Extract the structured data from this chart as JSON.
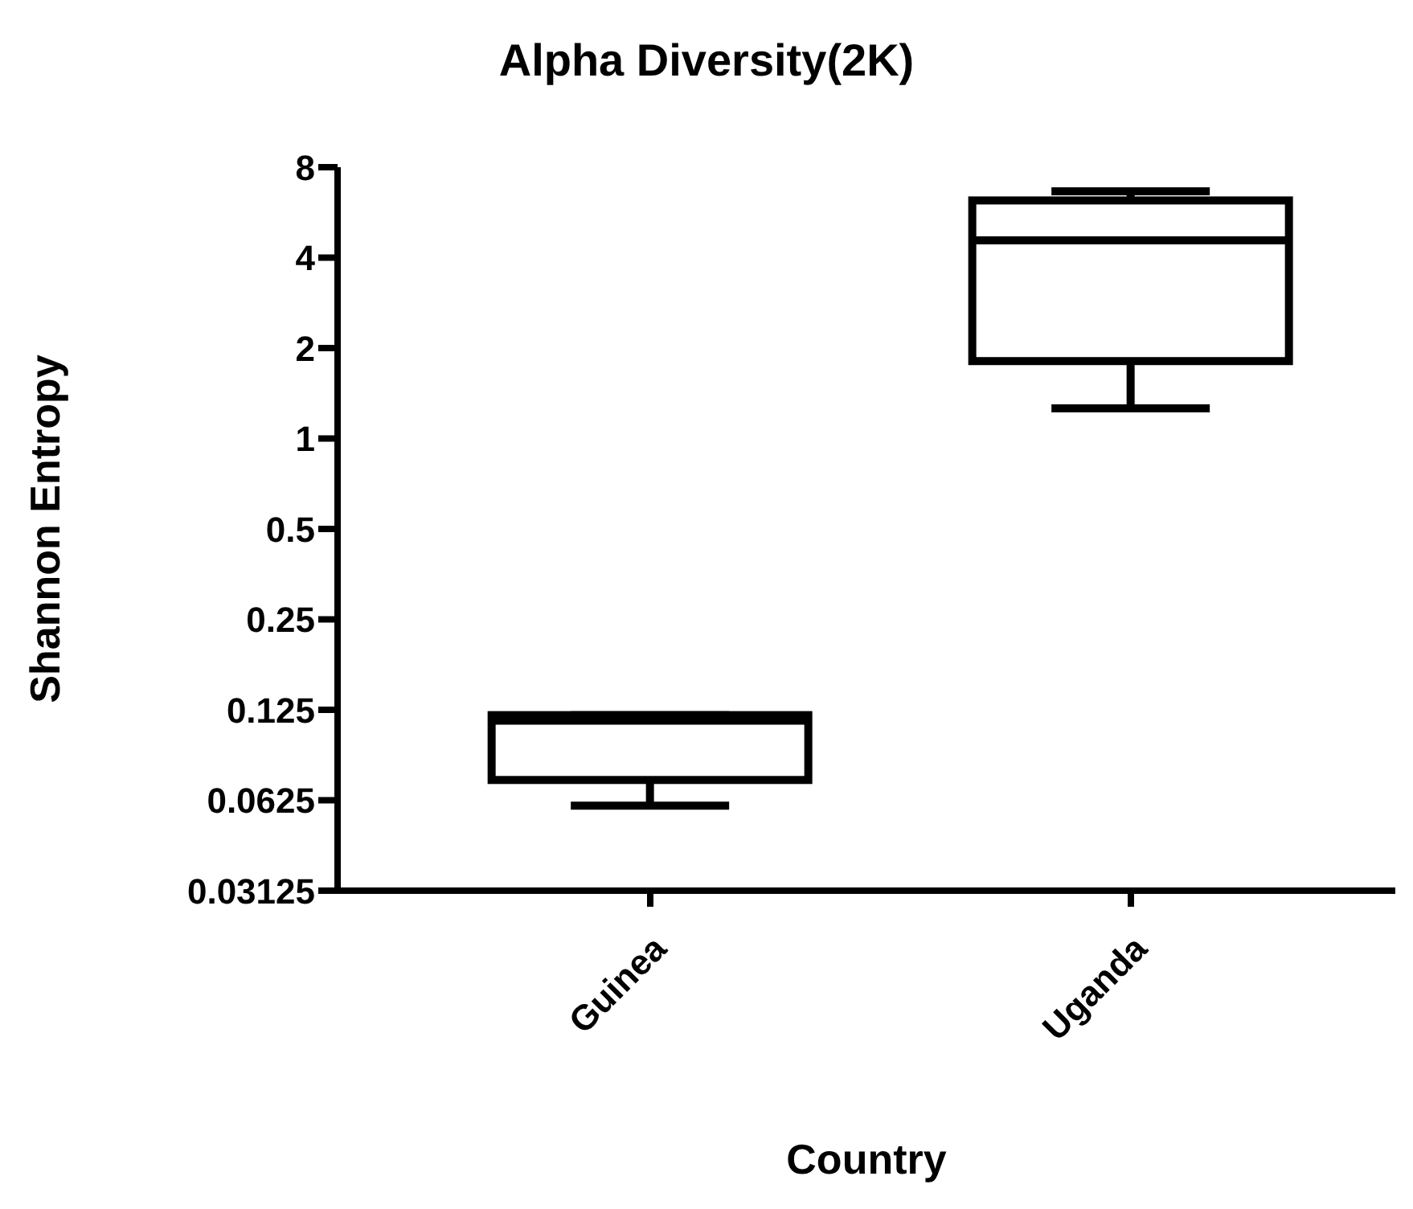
{
  "chart_data": {
    "type": "box",
    "title": "Alpha Diversity(2K)",
    "xlabel": "Country",
    "ylabel": "Shannon Entropy",
    "categories": [
      "Guinea",
      "Uganda"
    ],
    "boxes": [
      {
        "low": 0.06,
        "q1": 0.073,
        "median": 0.115,
        "q3": 0.12,
        "high": 0.12
      },
      {
        "low": 1.26,
        "q1": 1.81,
        "median": 4.57,
        "q3": 6.2,
        "high": 6.65
      }
    ],
    "log": true,
    "ylim": [
      0.03125,
      8
    ],
    "yticks": [
      0.03125,
      0.0625,
      0.125,
      0.25,
      0.5,
      1,
      2,
      4,
      8
    ],
    "grid": false
  }
}
